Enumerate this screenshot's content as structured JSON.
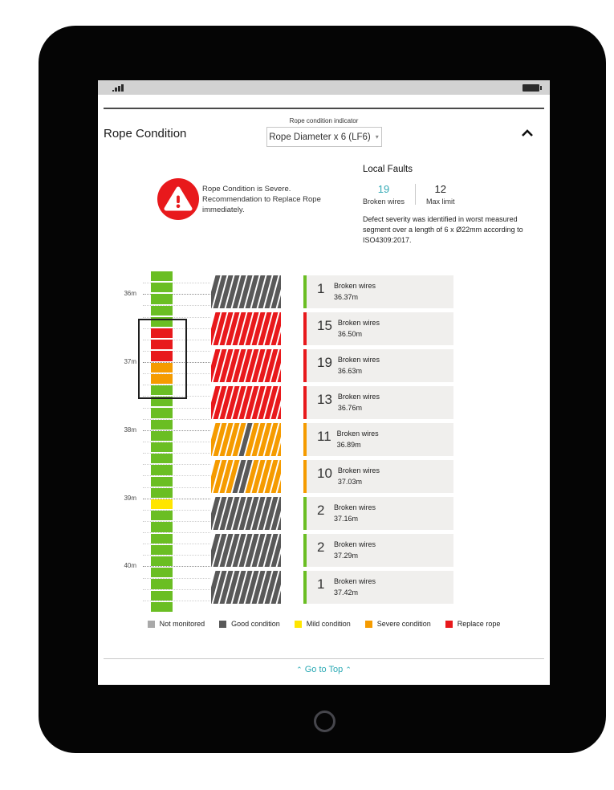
{
  "header": {
    "title": "Rope Condition",
    "indicator_label": "Rope condition indicator",
    "indicator_value": "Rope Diameter x 6 (LF6)",
    "caret_glyph": "▾"
  },
  "alert": {
    "icon": "warning-triangle-icon",
    "line1": "Rope Condition is Severe.",
    "line2": "Recommendation to Replace Rope immediately."
  },
  "local_faults": {
    "title": "Local Faults",
    "broken_wires_value": "19",
    "broken_wires_label": "Broken wires",
    "max_limit_value": "12",
    "max_limit_label": "Max limit",
    "description": "Defect severity was identified in worst measured segment over a length of 6 x Ø22mm according to ISO4309:2017."
  },
  "chart_data": {
    "type": "rope-condition-map",
    "depth_axis": {
      "labels": [
        "36m",
        "37m",
        "38m",
        "39m",
        "40m"
      ],
      "boundary_indices": [
        2,
        8,
        14,
        20,
        26
      ]
    },
    "strip_segments": [
      "green",
      "green",
      "green",
      "green",
      "green",
      "red",
      "red",
      "red",
      "orange",
      "orange",
      "green",
      "green",
      "green",
      "green",
      "green",
      "green",
      "green",
      "green",
      "green",
      "green",
      "yellow",
      "green",
      "green",
      "green",
      "green",
      "green",
      "green",
      "green",
      "green",
      "green"
    ],
    "fault_unit_label": "Broken wires",
    "faults": [
      {
        "broken_wires": "1",
        "depth": "36.37m",
        "bar_color": "gray_dark",
        "accent": "green",
        "gray_stripes": []
      },
      {
        "broken_wires": "15",
        "depth": "36.50m",
        "bar_color": "red",
        "accent": "red",
        "gray_stripes": []
      },
      {
        "broken_wires": "19",
        "depth": "36.63m",
        "bar_color": "red",
        "accent": "red",
        "gray_stripes": []
      },
      {
        "broken_wires": "13",
        "depth": "36.76m",
        "bar_color": "red",
        "accent": "red",
        "gray_stripes": []
      },
      {
        "broken_wires": "11",
        "depth": "36.89m",
        "bar_color": "orange",
        "accent": "orange",
        "gray_stripes": [
          5
        ]
      },
      {
        "broken_wires": "10",
        "depth": "37.03m",
        "bar_color": "orange",
        "accent": "orange",
        "gray_stripes": [
          4,
          5
        ]
      },
      {
        "broken_wires": "2",
        "depth": "37.16m",
        "bar_color": "gray_dark",
        "accent": "green",
        "gray_stripes": []
      },
      {
        "broken_wires": "2",
        "depth": "37.29m",
        "bar_color": "gray_dark",
        "accent": "green",
        "gray_stripes": []
      },
      {
        "broken_wires": "1",
        "depth": "37.42m",
        "bar_color": "gray_dark",
        "accent": "green",
        "gray_stripes": []
      }
    ]
  },
  "legend": [
    {
      "label": "Not monitored",
      "color": "gray_light"
    },
    {
      "label": "Good condition",
      "color": "gray_dark"
    },
    {
      "label": "Mild condition",
      "color": "yellow"
    },
    {
      "label": "Severe condition",
      "color": "orange"
    },
    {
      "label": "Replace rope",
      "color": "red"
    }
  ],
  "footer": {
    "go_to_top": "Go to Top",
    "chevron_glyph": "⌃"
  },
  "colors": {
    "green": "#6abe23",
    "red": "#e8191c",
    "orange": "#f59b00",
    "yellow": "#ffe500",
    "gray_dark": "#595959",
    "gray_light": "#a9a9a9",
    "teal": "#35aab6"
  }
}
